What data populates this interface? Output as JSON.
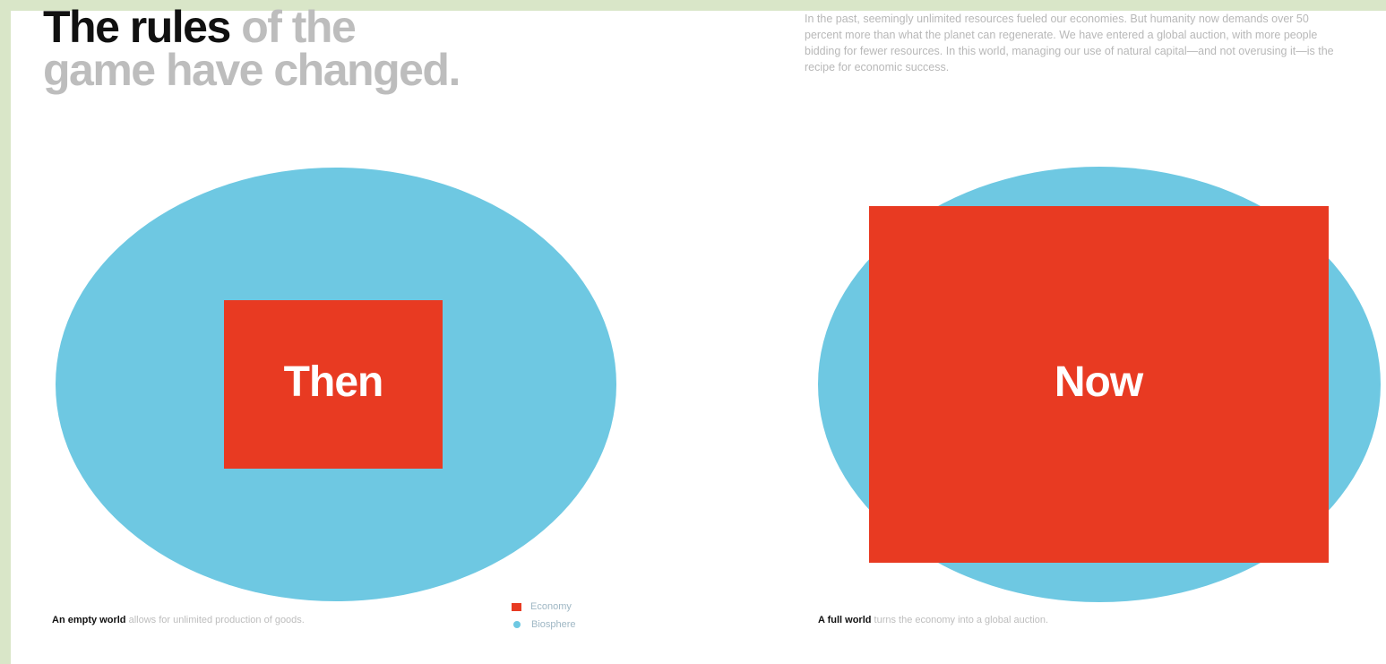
{
  "headline": {
    "bold": "The rules",
    "light_1": " of the",
    "light_2": "game have changed."
  },
  "intro": "In the past, seemingly unlimited resources fueled our economies. But humanity now demands over 50 percent more than what the planet can regenerate. We have entered a global auction, with more people bidding for fewer resources. In this world, managing our use of natural capital—and not overusing it—is the recipe for economic success.",
  "panels": [
    {
      "label": "Then",
      "caption_bold": "An empty world",
      "caption_rest": " allows for unlimited production of goods."
    },
    {
      "label": "Now",
      "caption_bold": "A full world",
      "caption_rest": " turns the economy into a global auction."
    }
  ],
  "legend": [
    {
      "label": "Economy",
      "shape": "square",
      "color": "#e83a22"
    },
    {
      "label": "Biosphere",
      "shape": "circle",
      "color": "#6ec8e2"
    }
  ],
  "colors": {
    "biosphere": "#6ec8e2",
    "economy": "#e83a22"
  }
}
